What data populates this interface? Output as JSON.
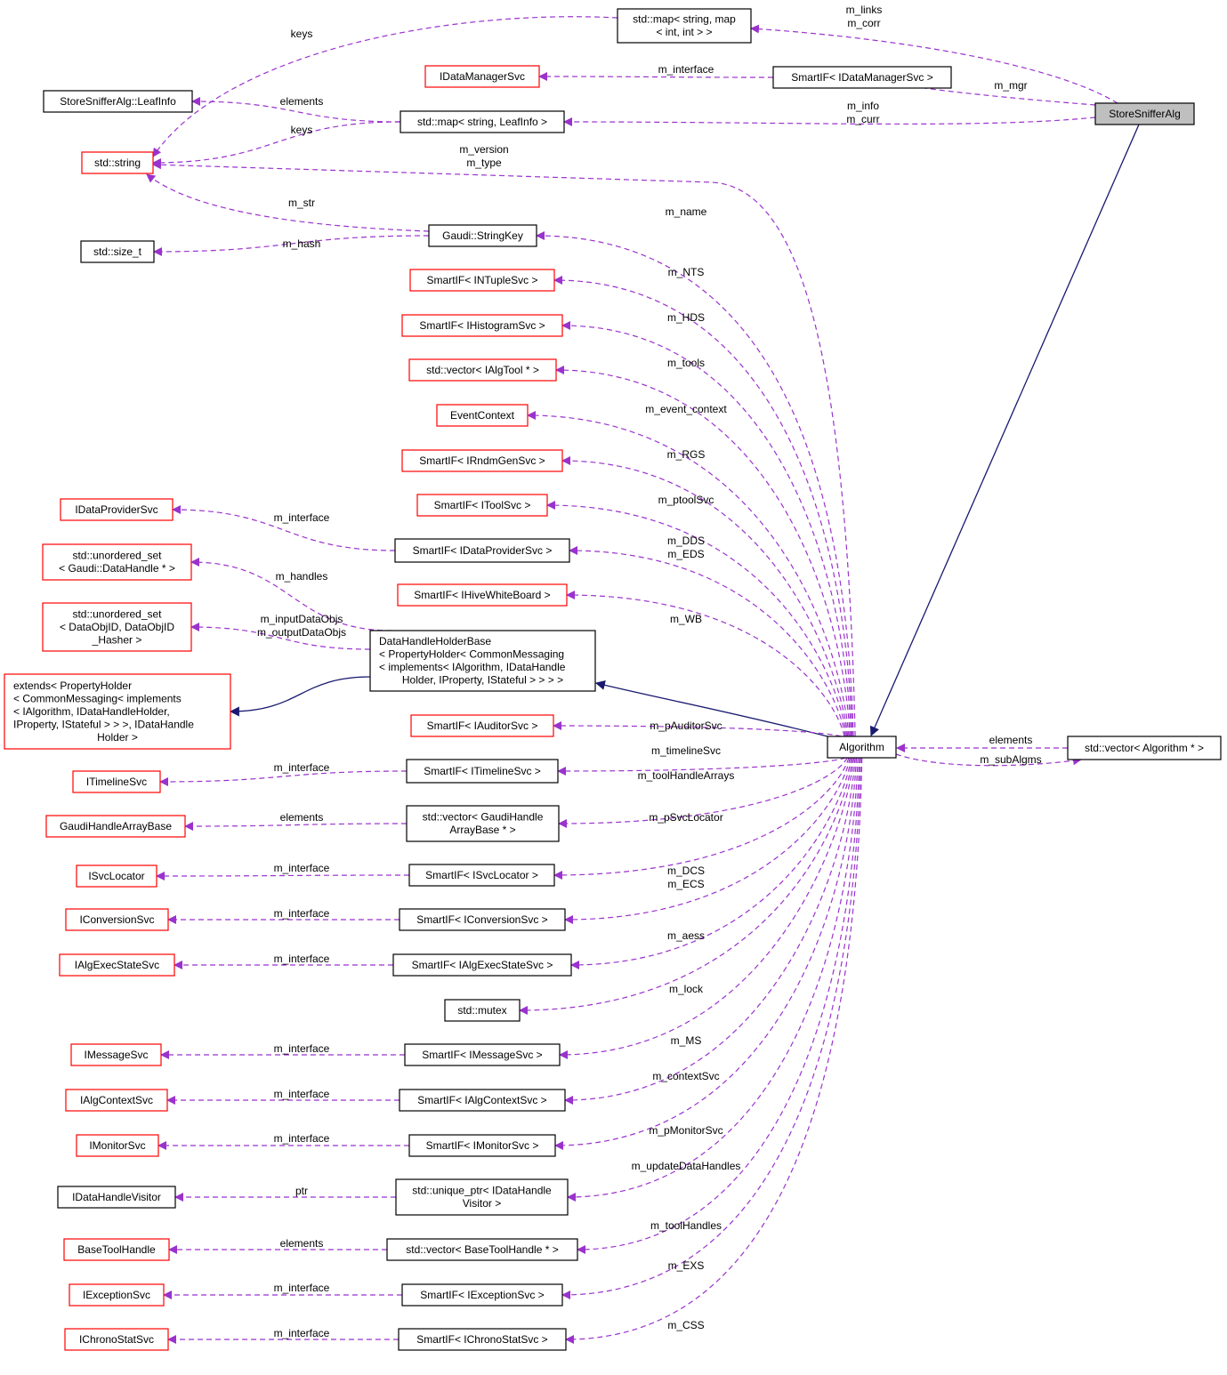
{
  "colors": {
    "uses_edge": "#9a32cd",
    "inherit_edge": "#191970",
    "undocumented_border": "#ff0000",
    "documented_border": "#000000",
    "focus_fill": "#bfbfbf"
  },
  "nodes": [
    {
      "id": "links_map",
      "lines": [
        "std::map< string, map",
        "< int, int > >"
      ],
      "kind": "black"
    },
    {
      "id": "idms",
      "lines": [
        "IDataManagerSvc"
      ],
      "kind": "red"
    },
    {
      "id": "smartif_idms",
      "lines": [
        "SmartIF< IDataManagerSvc >"
      ],
      "kind": "black"
    },
    {
      "id": "leafinfo",
      "lines": [
        "StoreSnifferAlg::LeafInfo"
      ],
      "kind": "black"
    },
    {
      "id": "map_leaf",
      "lines": [
        "std::map< string, LeafInfo >"
      ],
      "kind": "black"
    },
    {
      "id": "ssa",
      "lines": [
        "StoreSnifferAlg"
      ],
      "kind": "focus"
    },
    {
      "id": "string",
      "lines": [
        "std::string"
      ],
      "kind": "red"
    },
    {
      "id": "stringkey",
      "lines": [
        "Gaudi::StringKey"
      ],
      "kind": "black"
    },
    {
      "id": "size_t",
      "lines": [
        "std::size_t"
      ],
      "kind": "black"
    },
    {
      "id": "ntuple",
      "lines": [
        "SmartIF< INTupleSvc >"
      ],
      "kind": "red"
    },
    {
      "id": "hist",
      "lines": [
        "SmartIF< IHistogramSvc >"
      ],
      "kind": "red"
    },
    {
      "id": "tools",
      "lines": [
        "std::vector< IAlgTool * >"
      ],
      "kind": "red"
    },
    {
      "id": "evctx",
      "lines": [
        "EventContext"
      ],
      "kind": "red"
    },
    {
      "id": "rndm",
      "lines": [
        "SmartIF< IRndmGenSvc >"
      ],
      "kind": "red"
    },
    {
      "id": "toolsvc",
      "lines": [
        "SmartIF< IToolSvc >"
      ],
      "kind": "red"
    },
    {
      "id": "idps",
      "lines": [
        "IDataProviderSvc"
      ],
      "kind": "red"
    },
    {
      "id": "smartif_idps",
      "lines": [
        "SmartIF< IDataProviderSvc >"
      ],
      "kind": "black"
    },
    {
      "id": "uset_handle",
      "lines": [
        "std::unordered_set",
        "< Gaudi::DataHandle * >"
      ],
      "kind": "red"
    },
    {
      "id": "hive",
      "lines": [
        "SmartIF< IHiveWhiteBoard >"
      ],
      "kind": "red"
    },
    {
      "id": "uset_obj",
      "lines": [
        "std::unordered_set",
        "< DataObjID, DataObjID",
        "_Hasher >"
      ],
      "kind": "red"
    },
    {
      "id": "dhhb",
      "lines": [
        "DataHandleHolderBase",
        "< PropertyHolder< CommonMessaging",
        "< implements< IAlgorithm, IDataHandle",
        "Holder, IProperty, IStateful > > > >"
      ],
      "kind": "black"
    },
    {
      "id": "extends",
      "lines": [
        "extends< PropertyHolder",
        "< CommonMessaging< implements",
        "< IAlgorithm, IDataHandleHolder,",
        "IProperty, IStateful > > >, IDataHandle",
        "Holder >"
      ],
      "kind": "red"
    },
    {
      "id": "auditor",
      "lines": [
        "SmartIF< IAuditorSvc >"
      ],
      "kind": "red"
    },
    {
      "id": "algorithm",
      "lines": [
        "Algorithm"
      ],
      "kind": "black"
    },
    {
      "id": "vec_alg",
      "lines": [
        "std::vector< Algorithm * >"
      ],
      "kind": "black"
    },
    {
      "id": "itimeline",
      "lines": [
        "ITimelineSvc"
      ],
      "kind": "red"
    },
    {
      "id": "smartif_timeline",
      "lines": [
        "SmartIF< ITimelineSvc >"
      ],
      "kind": "black"
    },
    {
      "id": "gaudiharray",
      "lines": [
        "GaudiHandleArrayBase"
      ],
      "kind": "red"
    },
    {
      "id": "vec_gha",
      "lines": [
        "std::vector< GaudiHandle",
        "ArrayBase * >"
      ],
      "kind": "black"
    },
    {
      "id": "isvcloc",
      "lines": [
        "ISvcLocator"
      ],
      "kind": "red"
    },
    {
      "id": "smartif_svcloc",
      "lines": [
        "SmartIF< ISvcLocator >"
      ],
      "kind": "black"
    },
    {
      "id": "iconv",
      "lines": [
        "IConversionSvc"
      ],
      "kind": "red"
    },
    {
      "id": "smartif_conv",
      "lines": [
        "SmartIF< IConversionSvc >"
      ],
      "kind": "black"
    },
    {
      "id": "iaes",
      "lines": [
        "IAlgExecStateSvc"
      ],
      "kind": "red"
    },
    {
      "id": "smartif_aes",
      "lines": [
        "SmartIF< IAlgExecStateSvc >"
      ],
      "kind": "black"
    },
    {
      "id": "mutex",
      "lines": [
        "std::mutex"
      ],
      "kind": "black"
    },
    {
      "id": "imsg",
      "lines": [
        "IMessageSvc"
      ],
      "kind": "red"
    },
    {
      "id": "smartif_msg",
      "lines": [
        "SmartIF< IMessageSvc >"
      ],
      "kind": "black"
    },
    {
      "id": "iactx",
      "lines": [
        "IAlgContextSvc"
      ],
      "kind": "red"
    },
    {
      "id": "smartif_actx",
      "lines": [
        "SmartIF< IAlgContextSvc >"
      ],
      "kind": "black"
    },
    {
      "id": "imon",
      "lines": [
        "IMonitorSvc"
      ],
      "kind": "red"
    },
    {
      "id": "smartif_mon",
      "lines": [
        "SmartIF< IMonitorSvc >"
      ],
      "kind": "black"
    },
    {
      "id": "idhv",
      "lines": [
        "IDataHandleVisitor"
      ],
      "kind": "black"
    },
    {
      "id": "uptr",
      "lines": [
        "std::unique_ptr< IDataHandle",
        "Visitor >"
      ],
      "kind": "black"
    },
    {
      "id": "btool",
      "lines": [
        "BaseToolHandle"
      ],
      "kind": "red"
    },
    {
      "id": "vec_btool",
      "lines": [
        "std::vector< BaseToolHandle * >"
      ],
      "kind": "black"
    },
    {
      "id": "iexc",
      "lines": [
        "IExceptionSvc"
      ],
      "kind": "red"
    },
    {
      "id": "smartif_exc",
      "lines": [
        "SmartIF< IExceptionSvc >"
      ],
      "kind": "black"
    },
    {
      "id": "ichrono",
      "lines": [
        "IChronoStatSvc"
      ],
      "kind": "red"
    },
    {
      "id": "smartif_chrono",
      "lines": [
        "SmartIF< IChronoStatSvc >"
      ],
      "kind": "black"
    }
  ],
  "edges": [
    {
      "from": "ssa",
      "to": "links_map",
      "labels": [
        "m_links",
        "m_corr"
      ],
      "style": "dashed"
    },
    {
      "from": "ssa",
      "to": "smartif_idms",
      "labels": [
        "m_mgr"
      ],
      "style": "dashed"
    },
    {
      "from": "smartif_idms",
      "to": "idms",
      "labels": [
        "m_interface"
      ],
      "style": "dashed"
    },
    {
      "from": "ssa",
      "to": "map_leaf",
      "labels": [
        "m_info",
        "m_curr"
      ],
      "style": "dashed"
    },
    {
      "from": "map_leaf",
      "to": "leafinfo",
      "labels": [
        "elements"
      ],
      "style": "dashed"
    },
    {
      "from": "map_leaf",
      "to": "string",
      "labels": [
        "keys"
      ],
      "style": "dashed"
    },
    {
      "from": "links_map",
      "to": "string",
      "labels": [
        "keys"
      ],
      "style": "dashed"
    },
    {
      "from": "algorithm",
      "to": "string",
      "labels": [
        "m_version",
        "m_type"
      ],
      "style": "dashed"
    },
    {
      "from": "stringkey",
      "to": "string",
      "labels": [
        "m_str"
      ],
      "style": "dashed"
    },
    {
      "from": "stringkey",
      "to": "size_t",
      "labels": [
        "m_hash"
      ],
      "style": "dashed"
    },
    {
      "from": "algorithm",
      "to": "stringkey",
      "labels": [
        "m_name"
      ],
      "style": "dashed"
    },
    {
      "from": "algorithm",
      "to": "ntuple",
      "labels": [
        "m_NTS"
      ],
      "style": "dashed"
    },
    {
      "from": "algorithm",
      "to": "hist",
      "labels": [
        "m_HDS"
      ],
      "style": "dashed"
    },
    {
      "from": "algorithm",
      "to": "tools",
      "labels": [
        "m_tools"
      ],
      "style": "dashed"
    },
    {
      "from": "algorithm",
      "to": "evctx",
      "labels": [
        "m_event_context"
      ],
      "style": "dashed"
    },
    {
      "from": "algorithm",
      "to": "rndm",
      "labels": [
        "m_RGS"
      ],
      "style": "dashed"
    },
    {
      "from": "algorithm",
      "to": "toolsvc",
      "labels": [
        "m_ptoolSvc"
      ],
      "style": "dashed"
    },
    {
      "from": "algorithm",
      "to": "smartif_idps",
      "labels": [
        "m_DDS",
        "m_EDS"
      ],
      "style": "dashed"
    },
    {
      "from": "smartif_idps",
      "to": "idps",
      "labels": [
        "m_interface"
      ],
      "style": "dashed"
    },
    {
      "from": "algorithm",
      "to": "hive",
      "labels": [
        "m_WB"
      ],
      "style": "dashed"
    },
    {
      "from": "dhhb",
      "to": "uset_handle",
      "labels": [
        "m_handles"
      ],
      "style": "dashed"
    },
    {
      "from": "dhhb",
      "to": "uset_obj",
      "labels": [
        "m_inputDataObjs",
        "m_outputDataObjs"
      ],
      "style": "dashed"
    },
    {
      "from": "dhhb",
      "to": "extends",
      "labels": [],
      "style": "solid"
    },
    {
      "from": "algorithm",
      "to": "dhhb",
      "labels": [],
      "style": "solid"
    },
    {
      "from": "ssa",
      "to": "algorithm",
      "labels": [],
      "style": "solid"
    },
    {
      "from": "algorithm",
      "to": "auditor",
      "labels": [
        "m_pAuditorSvc"
      ],
      "style": "dashed"
    },
    {
      "from": "algorithm",
      "to": "smartif_timeline",
      "labels": [
        "m_timelineSvc"
      ],
      "style": "dashed"
    },
    {
      "from": "smartif_timeline",
      "to": "itimeline",
      "labels": [
        "m_interface"
      ],
      "style": "dashed"
    },
    {
      "from": "algorithm",
      "to": "vec_gha",
      "labels": [
        "m_toolHandleArrays"
      ],
      "style": "dashed"
    },
    {
      "from": "vec_gha",
      "to": "gaudiharray",
      "labels": [
        "elements"
      ],
      "style": "dashed"
    },
    {
      "from": "algorithm",
      "to": "smartif_svcloc",
      "labels": [
        "m_pSvcLocator"
      ],
      "style": "dashed"
    },
    {
      "from": "smartif_svcloc",
      "to": "isvcloc",
      "labels": [
        "m_interface"
      ],
      "style": "dashed"
    },
    {
      "from": "algorithm",
      "to": "smartif_conv",
      "labels": [
        "m_DCS",
        "m_ECS"
      ],
      "style": "dashed"
    },
    {
      "from": "smartif_conv",
      "to": "iconv",
      "labels": [
        "m_interface"
      ],
      "style": "dashed"
    },
    {
      "from": "algorithm",
      "to": "smartif_aes",
      "labels": [
        "m_aess"
      ],
      "style": "dashed"
    },
    {
      "from": "smartif_aes",
      "to": "iaes",
      "labels": [
        "m_interface"
      ],
      "style": "dashed"
    },
    {
      "from": "algorithm",
      "to": "mutex",
      "labels": [
        "m_lock"
      ],
      "style": "dashed"
    },
    {
      "from": "algorithm",
      "to": "smartif_msg",
      "labels": [
        "m_MS"
      ],
      "style": "dashed"
    },
    {
      "from": "smartif_msg",
      "to": "imsg",
      "labels": [
        "m_interface"
      ],
      "style": "dashed"
    },
    {
      "from": "algorithm",
      "to": "smartif_actx",
      "labels": [
        "m_contextSvc"
      ],
      "style": "dashed"
    },
    {
      "from": "smartif_actx",
      "to": "iactx",
      "labels": [
        "m_interface"
      ],
      "style": "dashed"
    },
    {
      "from": "algorithm",
      "to": "smartif_mon",
      "labels": [
        "m_pMonitorSvc"
      ],
      "style": "dashed"
    },
    {
      "from": "smartif_mon",
      "to": "imon",
      "labels": [
        "m_interface"
      ],
      "style": "dashed"
    },
    {
      "from": "algorithm",
      "to": "uptr",
      "labels": [
        "m_updateDataHandles"
      ],
      "style": "dashed"
    },
    {
      "from": "uptr",
      "to": "idhv",
      "labels": [
        "ptr"
      ],
      "style": "dashed"
    },
    {
      "from": "algorithm",
      "to": "vec_btool",
      "labels": [
        "m_toolHandles"
      ],
      "style": "dashed"
    },
    {
      "from": "vec_btool",
      "to": "btool",
      "labels": [
        "elements"
      ],
      "style": "dashed"
    },
    {
      "from": "algorithm",
      "to": "smartif_exc",
      "labels": [
        "m_EXS"
      ],
      "style": "dashed"
    },
    {
      "from": "smartif_exc",
      "to": "iexc",
      "labels": [
        "m_interface"
      ],
      "style": "dashed"
    },
    {
      "from": "algorithm",
      "to": "smartif_chrono",
      "labels": [
        "m_CSS"
      ],
      "style": "dashed"
    },
    {
      "from": "smartif_chrono",
      "to": "ichrono",
      "labels": [
        "m_interface"
      ],
      "style": "dashed"
    },
    {
      "from": "vec_alg",
      "to": "algorithm",
      "labels": [
        "elements"
      ],
      "style": "dashed"
    },
    {
      "from": "algorithm",
      "to": "vec_alg",
      "labels": [
        "m_subAlgms"
      ],
      "style": "dashed"
    }
  ]
}
